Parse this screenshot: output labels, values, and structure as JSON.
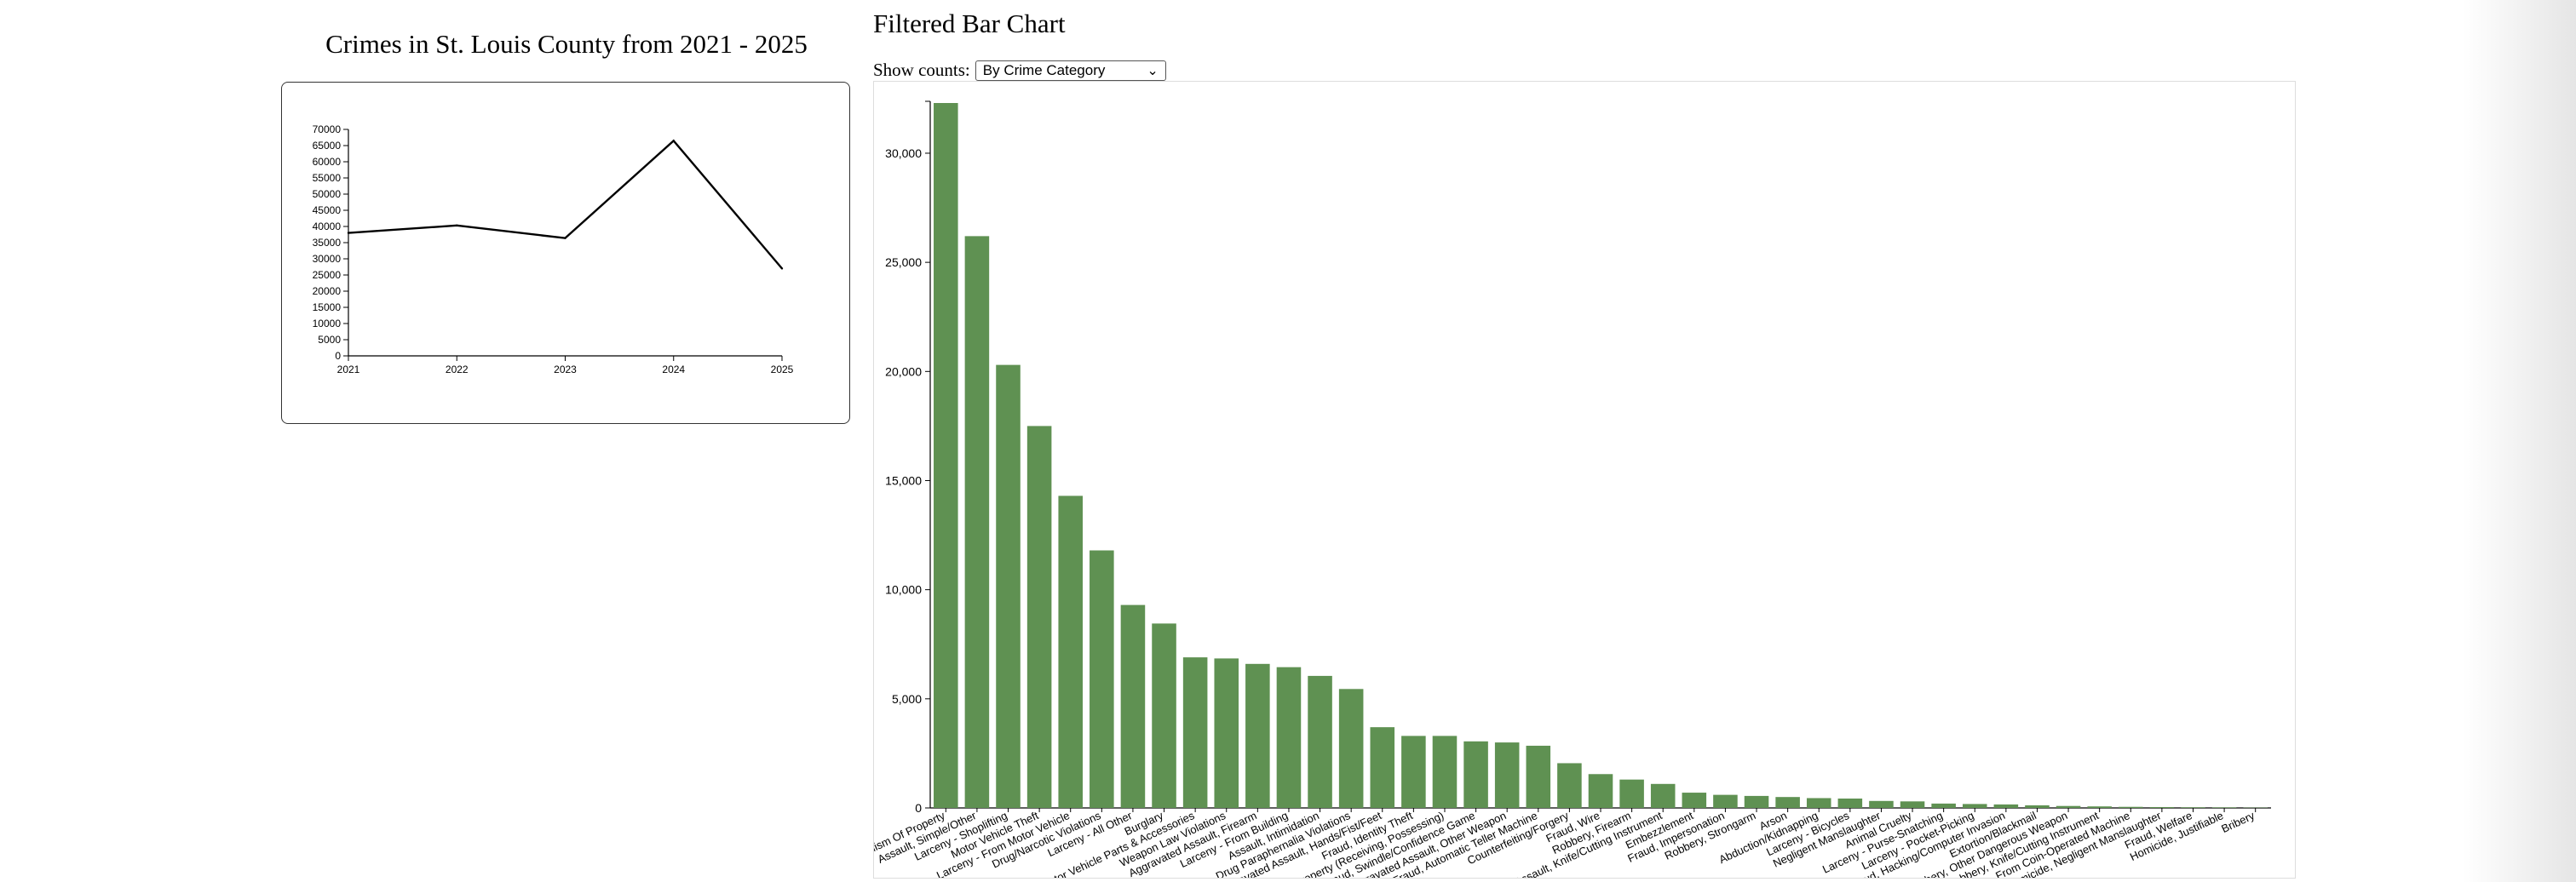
{
  "line_chart": {
    "title": "Crimes in St. Louis County from 2021 - 2025"
  },
  "bar_chart": {
    "title": "Filtered Bar Chart",
    "control_label": "Show counts:",
    "selected_option": "By Crime Category"
  },
  "colors": {
    "bar": "#5f9152",
    "line": "#000000"
  },
  "chart_data": [
    {
      "type": "line",
      "title": "Crimes in St. Louis County from 2021 - 2025",
      "x": [
        "2021",
        "2022",
        "2023",
        "2024",
        "2025"
      ],
      "values": [
        38000,
        40300,
        36400,
        66500,
        27000
      ],
      "ylim": [
        0,
        70000
      ],
      "yticks": [
        0,
        5000,
        10000,
        15000,
        20000,
        25000,
        30000,
        35000,
        40000,
        45000,
        50000,
        55000,
        60000,
        65000,
        70000
      ],
      "grid": false
    },
    {
      "type": "bar",
      "title": "Filtered Bar Chart",
      "ylim": [
        0,
        32300
      ],
      "yticks": [
        0,
        5000,
        10000,
        15000,
        20000,
        25000,
        30000
      ],
      "ytick_labels": [
        "0",
        "5,000",
        "10,000",
        "15,000",
        "20,000",
        "25,000",
        "30,000"
      ],
      "grid": false,
      "categories": [
        "Vandalism Of Property",
        "Assault, Simple/Other",
        "Larceny - Shoplifting",
        "Motor Vehicle Theft",
        "Larceny - From Motor Vehicle",
        "Drug/Narcotic Violations",
        "Larceny - All Other",
        "Burglary",
        "Larceny - Motor Vehicle Parts & Accessories",
        "Weapon Law Violations",
        "Aggravated Assault, Firearm",
        "Larceny - From Building",
        "Assault, Intimidation",
        "Drug Paraphernalia Violations",
        "Aggravated Assault, Hands/Fist/Feet",
        "Fraud, Identity Theft",
        "Stolen Property (Receiving, Possessing)",
        "Fraud, Swindle/Confidence Game",
        "Aggravated Assault, Other Weapon",
        "Fraud, Automatic Teller Machine",
        "Counterfeiting/Forgery",
        "Fraud, Wire",
        "Robbery, Firearm",
        "Aggravated Assault, Knife/Cutting Instrument",
        "Embezzlement",
        "Fraud, Impersonation",
        "Robbery, Strongarm",
        "Arson",
        "Abduction/Kidnapping",
        "Larceny - Bicycles",
        "Negligent Manslaughter",
        "Animal Cruelty",
        "Larceny - Purse-Snatching",
        "Larceny - Pocket-Picking",
        "Fraud, Hacking/Computer Invasion",
        "Extortion/Blackmail",
        "Robbery, Other Dangerous Weapon",
        "Robbery, Knife/Cutting Instrument",
        "Larceny - From Coin-Operated Machine",
        "Homicide, Negligent Manslaughter",
        "Fraud, Welfare",
        "Homicide, Justifiable",
        "Bribery"
      ],
      "values": [
        32300,
        26200,
        20300,
        17500,
        14300,
        11800,
        9300,
        8450,
        6900,
        6850,
        6600,
        6450,
        6050,
        5450,
        3700,
        3300,
        3300,
        3050,
        3000,
        2850,
        2050,
        1550,
        1300,
        1100,
        700,
        600,
        550,
        500,
        450,
        430,
        320,
        300,
        200,
        180,
        160,
        120,
        90,
        70,
        50,
        40,
        30,
        25,
        15
      ]
    }
  ]
}
